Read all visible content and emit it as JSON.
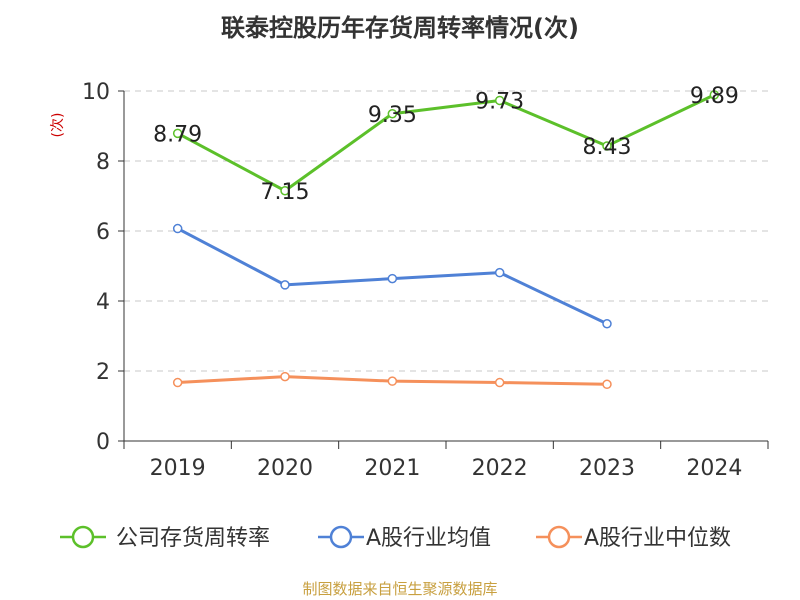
{
  "chart_data": {
    "type": "line",
    "title": "联泰控股历年存货周转率情况(次)",
    "ylabel_unit": "(次)",
    "categories": [
      "2019",
      "2020",
      "2021",
      "2022",
      "2023",
      "2024"
    ],
    "y_ticks": [
      "0",
      "2",
      "4",
      "6",
      "8",
      "10"
    ],
    "ylim": [
      0,
      10
    ],
    "grid": true,
    "legend_position": "bottom",
    "series": [
      {
        "name": "公司存货周转率",
        "color": "#5cc02a",
        "values": [
          8.79,
          7.15,
          9.35,
          9.73,
          8.43,
          9.89
        ],
        "labels": [
          "8.79",
          "7.15",
          "9.35",
          "9.73",
          "8.43",
          "9.89"
        ]
      },
      {
        "name": "A股行业均值",
        "color": "#4f81d6",
        "values": [
          6.07,
          4.46,
          4.64,
          4.81,
          3.35,
          null
        ]
      },
      {
        "name": "A股行业中位数",
        "color": "#f5905b",
        "values": [
          1.67,
          1.84,
          1.71,
          1.67,
          1.62,
          null
        ]
      }
    ],
    "source": "制图数据来自恒生聚源数据库"
  }
}
